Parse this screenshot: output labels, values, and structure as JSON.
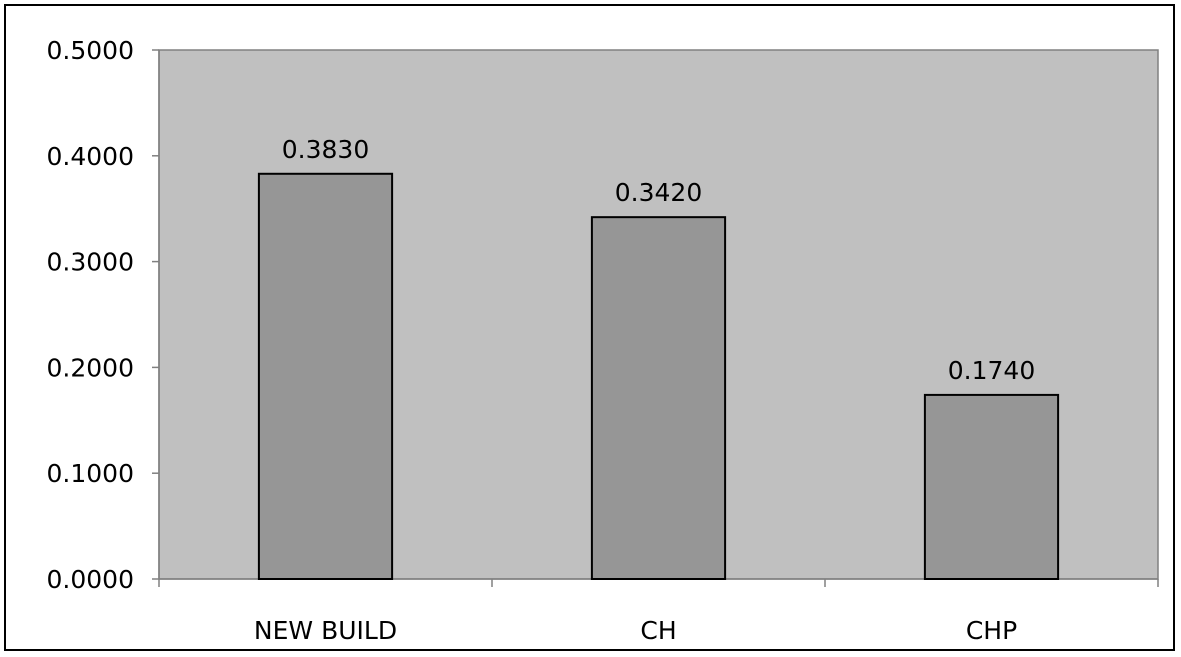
{
  "chart_data": {
    "type": "bar",
    "categories": [
      "NEW BUILD",
      "CH",
      "CHP"
    ],
    "values": [
      0.383,
      0.342,
      0.174
    ],
    "value_labels": [
      "0.3830",
      "0.3420",
      "0.1740"
    ],
    "y_ticks": [
      0,
      0.1,
      0.2,
      0.3,
      0.4,
      0.5
    ],
    "y_tick_labels": [
      "0.0000",
      "0.1000",
      "0.2000",
      "0.3000",
      "0.4000",
      "0.5000"
    ],
    "ylim": [
      0,
      0.5
    ],
    "title": "",
    "xlabel": "",
    "ylabel": "",
    "grid": false,
    "legend": "none",
    "colors": {
      "plot_background": "#c0c0c0",
      "bar_fill": "#969696",
      "bar_stroke": "#000000",
      "axis": "#808080"
    }
  }
}
